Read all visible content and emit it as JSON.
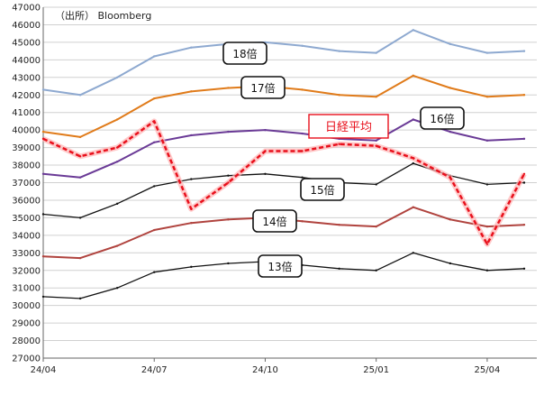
{
  "source": "（出所） Bloomberg",
  "chart_data": {
    "type": "line",
    "x": [
      "24/04",
      "24/05",
      "24/06",
      "24/07",
      "24/08",
      "24/09",
      "24/10",
      "24/11",
      "24/12",
      "25/01",
      "25/02",
      "25/03",
      "25/04",
      "25/05"
    ],
    "x_ticks": [
      "24/04",
      "24/07",
      "24/10",
      "25/01",
      "25/04"
    ],
    "ylim": [
      27000,
      47000
    ],
    "y_ticks": [
      27000,
      28000,
      29000,
      30000,
      31000,
      32000,
      33000,
      34000,
      35000,
      36000,
      37000,
      38000,
      39000,
      40000,
      41000,
      42000,
      43000,
      44000,
      45000,
      46000,
      47000
    ],
    "grid": "horizontal",
    "series": [
      {
        "name": "18倍",
        "color": "#8ea9d0",
        "values": [
          42300,
          42000,
          43000,
          44200,
          44700,
          44900,
          45000,
          44800,
          44500,
          44400,
          45700,
          44900,
          44400,
          44500
        ]
      },
      {
        "name": "17倍",
        "color": "#e07b1a",
        "values": [
          39900,
          39600,
          40600,
          41800,
          42200,
          42400,
          42500,
          42300,
          42000,
          41900,
          43100,
          42400,
          41900,
          42000
        ]
      },
      {
        "name": "16倍",
        "color": "#6a3a96",
        "values": [
          37500,
          37300,
          38200,
          39300,
          39700,
          39900,
          40000,
          39800,
          39500,
          39400,
          40600,
          39900,
          39400,
          39500
        ]
      },
      {
        "name": "15倍",
        "color": "#111111",
        "values": [
          35200,
          35000,
          35800,
          36800,
          37200,
          37400,
          37500,
          37300,
          37000,
          36900,
          38100,
          37400,
          36900,
          37000
        ]
      },
      {
        "name": "14倍",
        "color": "#b0433e",
        "values": [
          32800,
          32700,
          33400,
          34300,
          34700,
          34900,
          35000,
          34800,
          34600,
          34500,
          35600,
          34900,
          34500,
          34600
        ]
      },
      {
        "name": "13倍",
        "color": "#111111",
        "values": [
          30500,
          30400,
          31000,
          31900,
          32200,
          32400,
          32500,
          32300,
          32100,
          32000,
          33000,
          32400,
          32000,
          32100
        ]
      },
      {
        "name": "日経平均",
        "color": "#e8101c",
        "values": [
          39500,
          38500,
          39000,
          40500,
          35500,
          37000,
          38800,
          38800,
          39200,
          39100,
          38400,
          37300,
          33500,
          37500
        ]
      }
    ]
  },
  "labels": {
    "s18": "18倍",
    "s17": "17倍",
    "s16": "16倍",
    "s15": "15倍",
    "s14": "14倍",
    "s13": "13倍",
    "nikkei": "日経平均"
  }
}
